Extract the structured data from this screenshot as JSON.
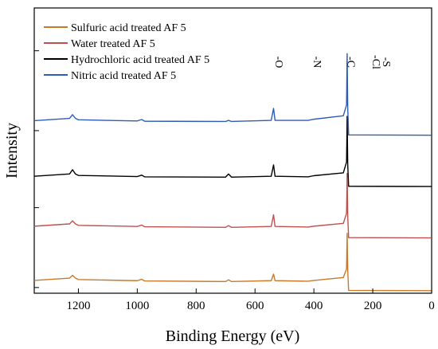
{
  "chart_data": {
    "type": "line",
    "title": "",
    "xlabel": "Binding Energy (eV)",
    "ylabel": "Intensity",
    "xlim": [
      1350,
      0
    ],
    "x_reversed": true,
    "ylim": [
      0,
      100
    ],
    "x_ticks": [
      1200,
      1000,
      800,
      600,
      400,
      200,
      0
    ],
    "y_ticks": [
      2,
      30,
      57,
      85
    ],
    "grid": false,
    "legend_position": "top-left",
    "element_labels": [
      "-O",
      "-N",
      "-C",
      "-Cl",
      "-S"
    ],
    "element_label_x": [
      530,
      400,
      285,
      200,
      165
    ],
    "series": [
      {
        "name": "Sulfuric acid treated AF 5",
        "color": "#c87a2a",
        "baseline_high": 4.5,
        "baseline_low": 1.0,
        "points": [
          [
            1350,
            4.5
          ],
          [
            1230,
            5.3
          ],
          [
            1220,
            6.3
          ],
          [
            1210,
            5.3
          ],
          [
            1200,
            4.8
          ],
          [
            1000,
            4.4
          ],
          [
            985,
            4.9
          ],
          [
            975,
            4.3
          ],
          [
            700,
            4.1
          ],
          [
            690,
            4.7
          ],
          [
            680,
            4.1
          ],
          [
            545,
            4.4
          ],
          [
            537,
            6.7
          ],
          [
            532,
            4.4
          ],
          [
            420,
            4.2
          ],
          [
            400,
            4.5
          ],
          [
            300,
            5.5
          ],
          [
            289,
            8.5
          ],
          [
            287,
            21
          ],
          [
            285,
            8
          ],
          [
            282,
            1.0
          ],
          [
            0,
            0.9
          ]
        ]
      },
      {
        "name": "Water treated AF 5",
        "color": "#c0504d",
        "baseline_high": 23.5,
        "baseline_low": 19.5,
        "points": [
          [
            1350,
            23.5
          ],
          [
            1230,
            24.3
          ],
          [
            1220,
            25.4
          ],
          [
            1210,
            24.3
          ],
          [
            1200,
            23.8
          ],
          [
            1000,
            23.4
          ],
          [
            985,
            23.9
          ],
          [
            975,
            23.3
          ],
          [
            700,
            23.1
          ],
          [
            690,
            23.7
          ],
          [
            680,
            23.1
          ],
          [
            545,
            23.4
          ],
          [
            537,
            27.5
          ],
          [
            532,
            23.4
          ],
          [
            420,
            23.2
          ],
          [
            400,
            23.5
          ],
          [
            300,
            24.5
          ],
          [
            289,
            28
          ],
          [
            287,
            42
          ],
          [
            285,
            27
          ],
          [
            282,
            19.5
          ],
          [
            0,
            19.4
          ]
        ]
      },
      {
        "name": "Hydrochloric acid treated AF 5",
        "color": "#000000",
        "baseline_high": 41.0,
        "baseline_low": 37.5,
        "points": [
          [
            1350,
            41.0
          ],
          [
            1230,
            41.8
          ],
          [
            1220,
            43.3
          ],
          [
            1210,
            41.8
          ],
          [
            1200,
            41.3
          ],
          [
            1000,
            40.9
          ],
          [
            985,
            41.4
          ],
          [
            975,
            40.8
          ],
          [
            700,
            40.7
          ],
          [
            690,
            41.8
          ],
          [
            680,
            40.7
          ],
          [
            545,
            41.0
          ],
          [
            537,
            45.0
          ],
          [
            532,
            41.0
          ],
          [
            420,
            40.8
          ],
          [
            400,
            41.2
          ],
          [
            300,
            42.2
          ],
          [
            289,
            46
          ],
          [
            287,
            62
          ],
          [
            285,
            45
          ],
          [
            282,
            37.5
          ],
          [
            0,
            37.4
          ]
        ]
      },
      {
        "name": "Nitric acid treated AF 5",
        "color": "#2e5cb8",
        "baseline_high": 60.5,
        "baseline_low": 55.5,
        "points": [
          [
            1350,
            60.5
          ],
          [
            1230,
            61.3
          ],
          [
            1220,
            62.6
          ],
          [
            1210,
            61.3
          ],
          [
            1200,
            60.8
          ],
          [
            1000,
            60.4
          ],
          [
            985,
            60.9
          ],
          [
            975,
            60.3
          ],
          [
            700,
            60.2
          ],
          [
            690,
            60.6
          ],
          [
            680,
            60.2
          ],
          [
            545,
            60.6
          ],
          [
            537,
            64.8
          ],
          [
            532,
            60.6
          ],
          [
            420,
            60.6
          ],
          [
            400,
            61.0
          ],
          [
            300,
            62.2
          ],
          [
            289,
            66
          ],
          [
            287,
            84
          ],
          [
            285,
            65
          ],
          [
            282,
            55.5
          ],
          [
            0,
            55.4
          ]
        ]
      }
    ]
  }
}
